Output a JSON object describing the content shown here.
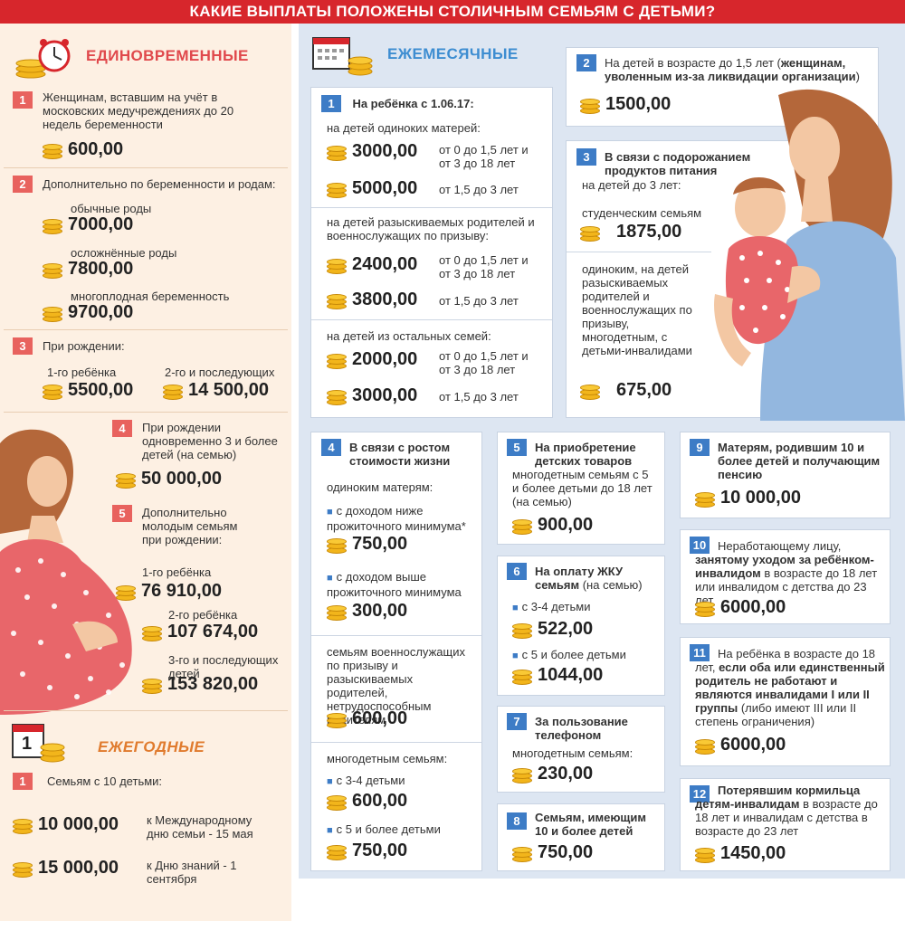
{
  "header": {
    "title": "КАКИЕ ВЫПЛАТЫ ПОЛОЖЕНЫ СТОЛИЧНЫМ СЕМЬЯМ С ДЕТЬМИ?"
  },
  "colors": {
    "banner": "#d7262c",
    "red_accent": "#e0494c",
    "blue_accent": "#3d8dd1",
    "coin": "#f2b51b"
  },
  "one_time": {
    "title": "ЕДИНОВРЕМЕННЫЕ",
    "icon": "alarm-clock-icon",
    "items": [
      {
        "num": "1",
        "label": "Женщинам, вставшим на учёт в московских медучреждениях до 20 недель беременности",
        "amount": "600,00"
      },
      {
        "num": "2",
        "label": "Дополнительно по беременности и родам:",
        "subs": [
          {
            "label": "обычные роды",
            "amount": "7000,00"
          },
          {
            "label": "осложнённые роды",
            "amount": "7800,00"
          },
          {
            "label": "многоплодная беременность",
            "amount": "9700,00"
          }
        ]
      },
      {
        "num": "3",
        "label": "При рождении:",
        "subs": [
          {
            "label": "1-го ребёнка",
            "amount": "5500,00"
          },
          {
            "label": "2-го и последующих",
            "amount": "14 500,00"
          }
        ]
      },
      {
        "num": "4",
        "label": "При рождении одновременно 3 и более детей (на семью)",
        "amount": "50 000,00"
      },
      {
        "num": "5",
        "label": "Дополнительно молодым семьям при рождении:",
        "subs": [
          {
            "label": "1-го ребёнка",
            "amount": "76 910,00"
          },
          {
            "label": "2-го ребёнка",
            "amount": "107 674,00"
          },
          {
            "label": "3-го и последующих детей",
            "amount": "153 820,00"
          }
        ]
      }
    ]
  },
  "annual": {
    "title": "ЕЖЕГОДНЫЕ",
    "calendar_day": "1",
    "items": [
      {
        "num": "1",
        "label": "Семьям с 10 детьми:",
        "subs": [
          {
            "amount": "10 000,00",
            "label": "к Международному дню семьи - 15 мая"
          },
          {
            "amount": "15 000,00",
            "label": "к Дню знаний - 1 сентября"
          }
        ]
      }
    ]
  },
  "monthly": {
    "title": "ЕЖЕМЕСЯЧНЫЕ",
    "b1": {
      "num": "1",
      "title": "На ребёнка с 1.06.17:",
      "groups": [
        {
          "label": "на детей одиноких матерей:",
          "rows": [
            {
              "amount": "3000,00",
              "note": "от 0 до 1,5 лет и от 3 до 18 лет"
            },
            {
              "amount": "5000,00",
              "note": "от 1,5 до 3 лет"
            }
          ]
        },
        {
          "label": "на детей разыскиваемых родителей и военнослужащих по призыву:",
          "rows": [
            {
              "amount": "2400,00",
              "note": "от 0 до 1,5 лет и от 3 до 18 лет"
            },
            {
              "amount": "3800,00",
              "note": "от 1,5 до 3 лет"
            }
          ]
        },
        {
          "label": "на детей из остальных семей:",
          "rows": [
            {
              "amount": "2000,00",
              "note": "от 0 до 1,5 лет и от 3 до 18 лет"
            },
            {
              "amount": "3000,00",
              "note": "от 1,5 до 3 лет"
            }
          ]
        }
      ]
    },
    "b2": {
      "num": "2",
      "label_start": "На детей в возрасте до 1,5 лет (",
      "label_bold": "женщинам, уволенным из-за ликвидации организации",
      "label_end": ")",
      "amount": "1500,00"
    },
    "b3": {
      "num": "3",
      "title": "В связи с подорожанием продуктов питания",
      "sub": "на детей до 3 лет:",
      "rows": [
        {
          "label": "студенческим семьям",
          "amount": "1875,00"
        },
        {
          "label": "одиноким, на детей разыскиваемых родителей и военнослужащих по призыву, многодетным, с детьми-инвалидами",
          "amount": "675,00"
        }
      ]
    },
    "b4": {
      "num": "4",
      "title": "В связи с ростом стоимости жизни",
      "sub": "одиноким матерям:",
      "rows": [
        {
          "label": "с доходом ниже прожиточного минимума*",
          "amount": "750,00"
        },
        {
          "label": "с доходом выше прожиточного минимума",
          "amount": "300,00"
        }
      ],
      "mil_label": "семьям военнослужащих по призыву и разыскиваемых родителей, нетрудоспособным родителям",
      "mil_amount": "600,00",
      "many_label": "многодетным семьям:",
      "many_rows": [
        {
          "label": "с 3-4 детьми",
          "amount": "600,00"
        },
        {
          "label": "с 5 и более детьми",
          "amount": "750,00"
        }
      ]
    },
    "b5": {
      "num": "5",
      "title": "На приобретение детских товаров",
      "sub": "многодетным семьям с 5 и более детьми до 18 лет (на семью)",
      "amount": "900,00"
    },
    "b6": {
      "num": "6",
      "title": "На оплату ЖКУ семьям",
      "title_tail": " (на семью)",
      "rows": [
        {
          "label": "с 3-4 детьми",
          "amount": "522,00"
        },
        {
          "label": "с 5 и более детьми",
          "amount": "1044,00"
        }
      ]
    },
    "b7": {
      "num": "7",
      "title": "За пользование телефоном",
      "sub": "многодетным семьям:",
      "amount": "230,00"
    },
    "b8": {
      "num": "8",
      "title": "Семьям, имеющим 10 и более детей",
      "amount": "750,00"
    },
    "b9": {
      "num": "9",
      "title": "Матерям, родившим 10 и более детей и получающим пенсию",
      "amount": "10 000,00"
    },
    "b10": {
      "num": "10",
      "p1": "Неработающему лицу, ",
      "p2": "занятому уходом за ребёнком-инвалидом",
      "p3": " в возрасте до 18 лет или инвалидом с детства до 23 лет",
      "amount": "6000,00"
    },
    "b11": {
      "num": "11",
      "p1": "На ребёнка в возрасте до 18 лет, ",
      "p2": "если оба или единственный родитель не работают и являются инвалидами I или II группы",
      "p3": " (либо имеют III или II степень ограничения)",
      "amount": "6000,00"
    },
    "b12": {
      "num": "12",
      "p1": "Потерявшим кормильца детям-инвалидам",
      "p2": " в возрасте до 18 лет и инвалидам с детства в возрасте до 23 лет",
      "amount": "1450,00"
    }
  }
}
